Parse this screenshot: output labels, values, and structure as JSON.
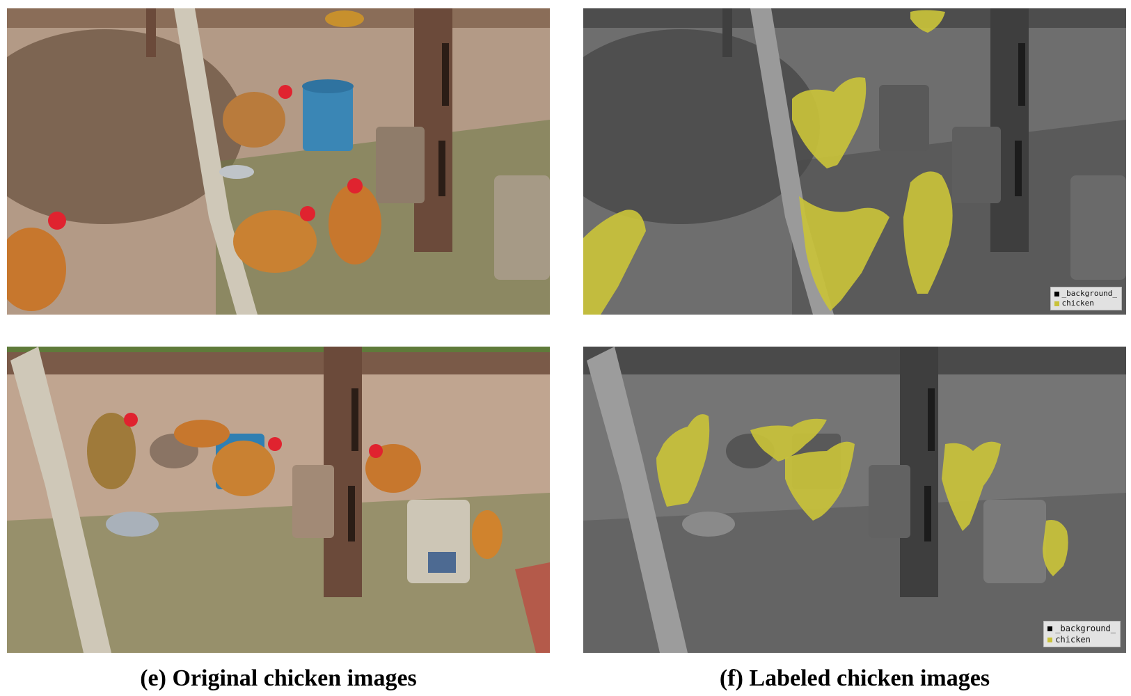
{
  "panels": {
    "original": {
      "alt": "Original chicken photos: hens in a dirt pen with buckets and a rusty post",
      "colors": {
        "dirt": "#a88b73",
        "grass": "#5f7a3a",
        "chicken": "#c7772d",
        "comb": "#e0232f",
        "bucket_blue": "#2f7fb2",
        "post": "#6b4a3a"
      }
    },
    "labeled": {
      "alt": "Labeled chicken photos: grayscale scenes with chickens highlighted in yellow",
      "colors": {
        "background_tint": "#6e6e6e",
        "chicken_mask": "#c9c23a"
      }
    }
  },
  "legend": {
    "background_label": "_background_",
    "chicken_label": "chicken",
    "background_color": "#000000",
    "chicken_color": "#c9c23a"
  },
  "captions": {
    "left": "(e) Original chicken images",
    "right": "(f) Labeled chicken images"
  }
}
